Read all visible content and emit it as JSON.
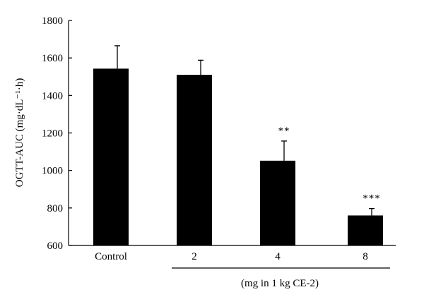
{
  "chart_data": {
    "type": "bar",
    "categories": [
      "Control",
      "2",
      "4",
      "8"
    ],
    "values": [
      1543,
      1510,
      1052,
      760
    ],
    "errors": [
      122,
      78,
      105,
      37
    ],
    "significance": [
      "",
      "",
      "**",
      "***"
    ],
    "ylabel": "OGTT-AUC (mg·dL⁻¹·h)",
    "group_label": "(mg in 1 kg CE-2)",
    "ylim": [
      600,
      1800
    ],
    "yticks": [
      600,
      800,
      1000,
      1200,
      1400,
      1600,
      1800
    ],
    "grid": false,
    "bar_color": "#000000"
  }
}
